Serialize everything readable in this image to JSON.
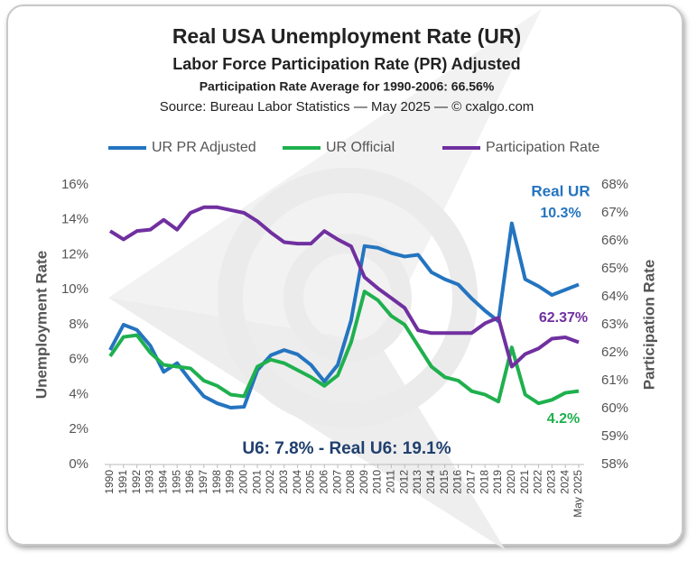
{
  "chart_data": {
    "type": "line",
    "title": "Real USA Unemployment Rate (UR)",
    "subtitle": "Labor Force Participation Rate (PR) Adjusted",
    "subtitle2": "Participation Rate Average for 1990-2006: 66.56%",
    "source": "Source: Bureau Labor Statistics — May 2025 — © cxalgo.com",
    "y_label": "Unemployment Rate",
    "y2_label": "Participation Rate",
    "categories": [
      "1990",
      "1991",
      "1992",
      "1993",
      "1994",
      "1995",
      "1996",
      "1997",
      "1998",
      "1999",
      "2000",
      "2001",
      "2002",
      "2003",
      "2004",
      "2005",
      "2006",
      "2007",
      "2008",
      "2009",
      "2010",
      "2011",
      "2012",
      "2013",
      "2014",
      "2015",
      "2016",
      "2017",
      "2018",
      "2019",
      "2020",
      "2021",
      "2022",
      "2023",
      "2024",
      "May 2025"
    ],
    "series": [
      {
        "name": "UR PR Adjusted",
        "color": "#2474c0",
        "axis": "y",
        "values": [
          6.55,
          8.0,
          7.7,
          6.8,
          5.3,
          5.8,
          4.8,
          3.9,
          3.5,
          3.25,
          3.3,
          5.4,
          6.25,
          6.55,
          6.3,
          5.7,
          4.75,
          5.7,
          8.25,
          12.5,
          12.4,
          12.1,
          11.9,
          12.0,
          11.0,
          10.6,
          10.3,
          9.5,
          8.8,
          8.2,
          13.8,
          10.6,
          10.2,
          9.7,
          10.0,
          10.3
        ]
      },
      {
        "name": "UR Official",
        "color": "#1fb04e",
        "axis": "y",
        "values": [
          6.2,
          7.3,
          7.4,
          6.4,
          5.7,
          5.6,
          5.5,
          4.8,
          4.5,
          4.0,
          3.9,
          5.6,
          6.0,
          5.8,
          5.4,
          5.0,
          4.5,
          5.1,
          7.0,
          9.9,
          9.4,
          8.5,
          8.0,
          6.8,
          5.6,
          5.0,
          4.8,
          4.2,
          4.0,
          3.6,
          6.7,
          4.0,
          3.5,
          3.7,
          4.1,
          4.2
        ]
      },
      {
        "name": "Participation Rate",
        "color": "#7030a0",
        "axis": "y2",
        "values": [
          66.35,
          66.05,
          66.35,
          66.4,
          66.75,
          66.4,
          67.0,
          67.2,
          67.2,
          67.1,
          67.0,
          66.7,
          66.3,
          65.95,
          65.9,
          65.9,
          66.35,
          66.05,
          65.8,
          64.7,
          64.3,
          63.95,
          63.6,
          62.8,
          62.7,
          62.7,
          62.7,
          62.7,
          63.05,
          63.25,
          61.5,
          61.95,
          62.15,
          62.5,
          62.55,
          62.37
        ]
      }
    ],
    "ylim": [
      0,
      16
    ],
    "yticks": [
      {
        "value": 0,
        "label": "0%"
      },
      {
        "value": 2,
        "label": "2%"
      },
      {
        "value": 4,
        "label": "4%"
      },
      {
        "value": 6,
        "label": "6%"
      },
      {
        "value": 8,
        "label": "8%"
      },
      {
        "value": 10,
        "label": "10%"
      },
      {
        "value": 12,
        "label": "12%"
      },
      {
        "value": 14,
        "label": "14%"
      },
      {
        "value": 16,
        "label": "16%"
      }
    ],
    "y2lim": [
      58,
      68
    ],
    "y2ticks": [
      {
        "value": 58,
        "label": "58%"
      },
      {
        "value": 59,
        "label": "59%"
      },
      {
        "value": 60,
        "label": "60%"
      },
      {
        "value": 61,
        "label": "61%"
      },
      {
        "value": 62,
        "label": "62%"
      },
      {
        "value": 63,
        "label": "63%"
      },
      {
        "value": 64,
        "label": "64%"
      },
      {
        "value": 65,
        "label": "65%"
      },
      {
        "value": 66,
        "label": "66%"
      },
      {
        "value": 67,
        "label": "67%"
      },
      {
        "value": 68,
        "label": "68%"
      }
    ],
    "legend": "top",
    "annotations": [
      {
        "text": "Real UR",
        "color": "#2474c0"
      },
      {
        "text": "10.3%",
        "color": "#2474c0"
      },
      {
        "text": "62.37%",
        "color": "#7030a0"
      },
      {
        "text": "4.2%",
        "color": "#1fb04e"
      },
      {
        "text": "U6: 7.8% - Real U6: 19.1%",
        "color": "#1f3f6e"
      }
    ]
  }
}
